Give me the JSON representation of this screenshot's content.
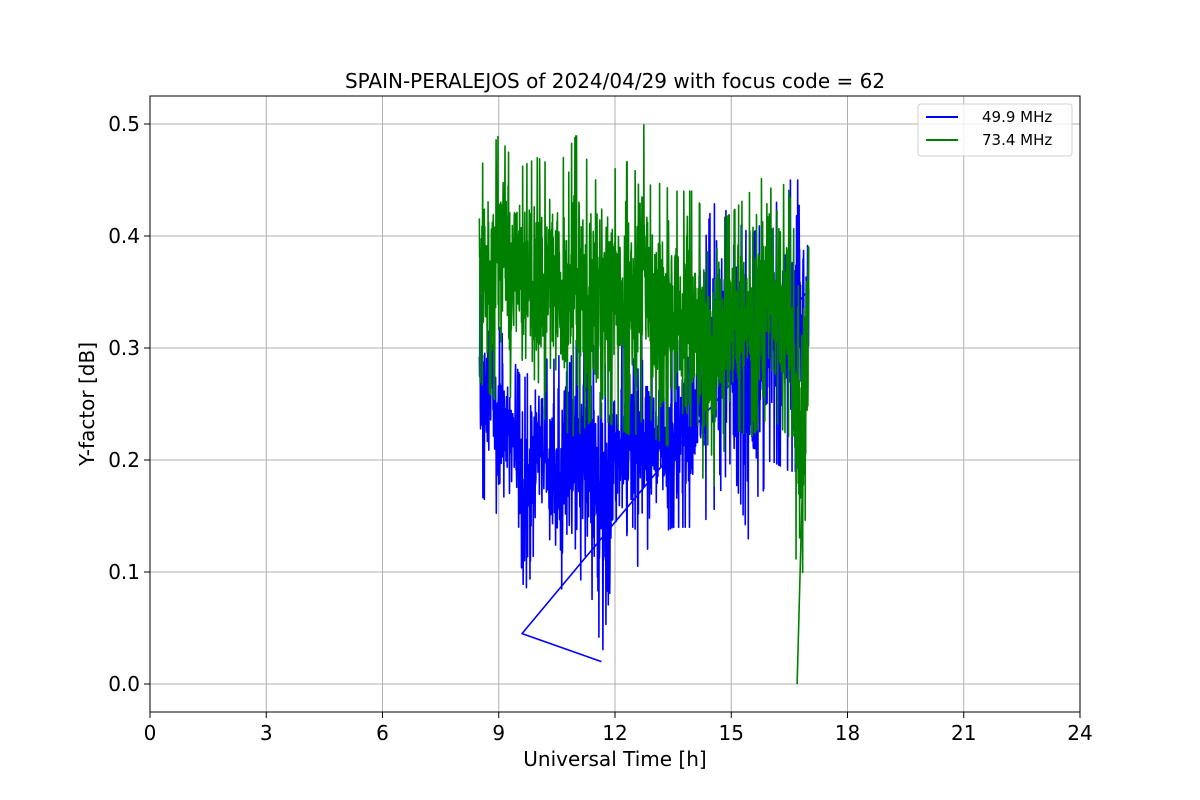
{
  "chart_data": {
    "type": "line",
    "title": "SPAIN-PERALEJOS of 2024/04/29 with focus code = 62",
    "xlabel": "Universal Time [h]",
    "ylabel": "Y-factor [dB]",
    "xlim": [
      0,
      24
    ],
    "ylim": [
      -0.025,
      0.525
    ],
    "xticks": [
      0,
      3,
      6,
      9,
      12,
      15,
      18,
      21,
      24
    ],
    "xtick_labels": [
      "0",
      "3",
      "6",
      "9",
      "12",
      "15",
      "18",
      "21",
      "24"
    ],
    "yticks": [
      0.0,
      0.1,
      0.2,
      0.3,
      0.4,
      0.5
    ],
    "ytick_labels": [
      "0.0",
      "0.1",
      "0.2",
      "0.3",
      "0.4",
      "0.5"
    ],
    "grid": true,
    "legend": "top-right",
    "series": [
      {
        "name": "49.9 MHz",
        "color": "#0000ff",
        "x_start": 8.5,
        "x_end": 17.0,
        "envelope": [
          {
            "x": 8.5,
            "min": 0.17,
            "max": 0.38
          },
          {
            "x": 9.0,
            "min": 0.15,
            "max": 0.32
          },
          {
            "x": 9.5,
            "min": 0.14,
            "max": 0.28
          },
          {
            "x": 9.6,
            "min": 0.045,
            "max": 0.27
          },
          {
            "x": 10.0,
            "min": 0.14,
            "max": 0.29
          },
          {
            "x": 10.5,
            "min": 0.08,
            "max": 0.29
          },
          {
            "x": 11.0,
            "min": 0.1,
            "max": 0.32
          },
          {
            "x": 11.5,
            "min": 0.07,
            "max": 0.3
          },
          {
            "x": 11.65,
            "min": 0.02,
            "max": 0.28
          },
          {
            "x": 12.0,
            "min": 0.12,
            "max": 0.3
          },
          {
            "x": 12.5,
            "min": 0.1,
            "max": 0.33
          },
          {
            "x": 13.0,
            "min": 0.13,
            "max": 0.31
          },
          {
            "x": 13.5,
            "min": 0.14,
            "max": 0.3
          },
          {
            "x": 14.0,
            "min": 0.14,
            "max": 0.33
          },
          {
            "x": 14.5,
            "min": 0.15,
            "max": 0.43
          },
          {
            "x": 15.0,
            "min": 0.2,
            "max": 0.42
          },
          {
            "x": 15.5,
            "min": 0.12,
            "max": 0.4
          },
          {
            "x": 16.0,
            "min": 0.2,
            "max": 0.42
          },
          {
            "x": 16.5,
            "min": 0.19,
            "max": 0.45
          },
          {
            "x": 17.0,
            "min": 0.19,
            "max": 0.45
          }
        ]
      },
      {
        "name": "73.4 MHz",
        "color": "#008000",
        "x_start": 8.5,
        "x_end": 17.0,
        "envelope": [
          {
            "x": 8.5,
            "min": 0.27,
            "max": 0.46
          },
          {
            "x": 9.0,
            "min": 0.25,
            "max": 0.49
          },
          {
            "x": 9.5,
            "min": 0.26,
            "max": 0.46
          },
          {
            "x": 10.0,
            "min": 0.24,
            "max": 0.47
          },
          {
            "x": 10.5,
            "min": 0.23,
            "max": 0.46
          },
          {
            "x": 11.0,
            "min": 0.22,
            "max": 0.49
          },
          {
            "x": 11.5,
            "min": 0.24,
            "max": 0.45
          },
          {
            "x": 12.0,
            "min": 0.23,
            "max": 0.46
          },
          {
            "x": 12.5,
            "min": 0.22,
            "max": 0.47
          },
          {
            "x": 12.75,
            "min": 0.24,
            "max": 0.5
          },
          {
            "x": 13.0,
            "min": 0.22,
            "max": 0.45
          },
          {
            "x": 13.5,
            "min": 0.21,
            "max": 0.44
          },
          {
            "x": 14.0,
            "min": 0.2,
            "max": 0.44
          },
          {
            "x": 14.5,
            "min": 0.17,
            "max": 0.41
          },
          {
            "x": 15.0,
            "min": 0.23,
            "max": 0.42
          },
          {
            "x": 15.5,
            "min": 0.22,
            "max": 0.44
          },
          {
            "x": 16.0,
            "min": 0.24,
            "max": 0.46
          },
          {
            "x": 16.5,
            "min": 0.22,
            "max": 0.44
          },
          {
            "x": 16.7,
            "min": 0.0,
            "max": 0.38
          },
          {
            "x": 17.0,
            "min": 0.21,
            "max": 0.39
          }
        ]
      }
    ]
  }
}
